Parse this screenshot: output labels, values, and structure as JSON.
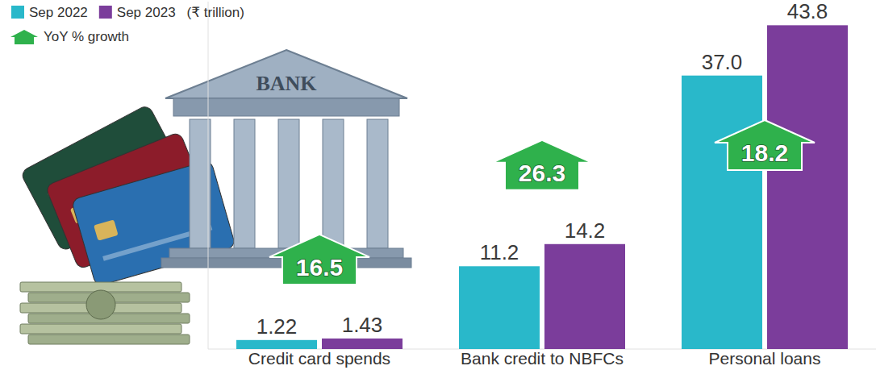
{
  "chart_data": {
    "type": "bar",
    "unit": "(₹ trillion)",
    "categories": [
      "Credit card spends",
      "Bank credit to NBFCs",
      "Personal loans"
    ],
    "series": [
      {
        "name": "Sep 2022",
        "color": "#29b8ca",
        "values": [
          1.22,
          11.2,
          37.0
        ],
        "value_labels": [
          "1.22",
          "11.2",
          "37.0"
        ]
      },
      {
        "name": "Sep 2023",
        "color": "#7b3d9b",
        "values": [
          1.43,
          14.2,
          43.8
        ],
        "value_labels": [
          "1.43",
          "14.2",
          "43.8"
        ]
      }
    ],
    "growth": [
      16.5,
      26.3,
      18.2
    ],
    "growth_label": "YoY % growth",
    "growth_color": "#2fb14c",
    "illustration_text": "BANK",
    "ylim": [
      0,
      47
    ],
    "data_labels": true,
    "tick_labels": false,
    "grid": false,
    "legend": "top-left"
  }
}
